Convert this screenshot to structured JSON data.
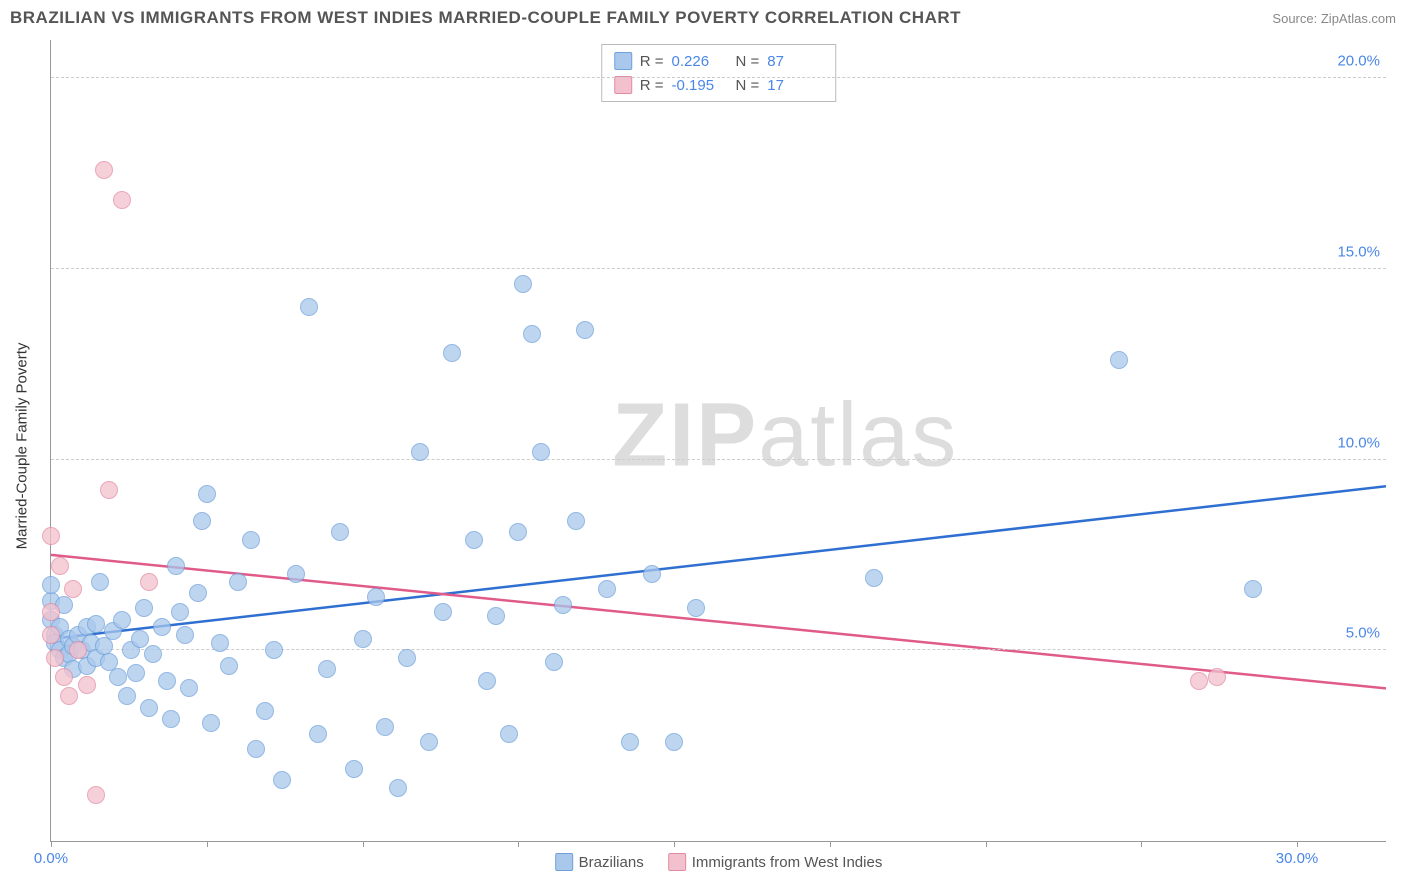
{
  "title": "BRAZILIAN VS IMMIGRANTS FROM WEST INDIES MARRIED-COUPLE FAMILY POVERTY CORRELATION CHART",
  "source_label": "Source:",
  "source_name": "ZipAtlas.com",
  "ylabel": "Married-Couple Family Poverty",
  "watermark": {
    "bold": "ZIP",
    "light": "atlas"
  },
  "chart": {
    "type": "scatter",
    "background_color": "#ffffff",
    "grid_color": "#cccccc",
    "axis_color": "#999999",
    "xlim": [
      0,
      30
    ],
    "ylim": [
      0,
      21
    ],
    "xtick_positions": [
      0,
      3.5,
      7,
      10.5,
      14,
      17.5,
      21,
      24.5,
      28
    ],
    "xtick_labels": {
      "0": "0.0%",
      "28": "30.0%"
    },
    "ytick_positions": [
      5,
      10,
      15,
      20
    ],
    "ytick_labels": {
      "5": "5.0%",
      "10": "10.0%",
      "15": "15.0%",
      "20": "20.0%"
    },
    "tick_label_color": "#4a86e8",
    "tick_label_fontsize": 15,
    "marker_radius": 9,
    "series": [
      {
        "name": "Brazilians",
        "fill": "#a9c8ec",
        "stroke": "#6fa1da",
        "stroke_width": 1.2,
        "opacity": 0.75,
        "R": "0.226",
        "N": "87",
        "trend": {
          "x1": 0,
          "y1": 5.3,
          "x2": 30,
          "y2": 9.3,
          "color": "#2e6fd1",
          "width": 2.5
        },
        "points": [
          [
            0.0,
            5.8
          ],
          [
            0.0,
            6.3
          ],
          [
            0.0,
            6.7
          ],
          [
            0.1,
            5.4
          ],
          [
            0.1,
            5.2
          ],
          [
            0.2,
            5.6
          ],
          [
            0.2,
            5.0
          ],
          [
            0.3,
            4.8
          ],
          [
            0.3,
            6.2
          ],
          [
            0.4,
            5.3
          ],
          [
            0.4,
            4.9
          ],
          [
            0.5,
            5.1
          ],
          [
            0.5,
            4.5
          ],
          [
            0.6,
            5.4
          ],
          [
            0.7,
            5.0
          ],
          [
            0.8,
            5.6
          ],
          [
            0.8,
            4.6
          ],
          [
            0.9,
            5.2
          ],
          [
            1.0,
            4.8
          ],
          [
            1.0,
            5.7
          ],
          [
            1.2,
            5.1
          ],
          [
            1.3,
            4.7
          ],
          [
            1.4,
            5.5
          ],
          [
            1.5,
            4.3
          ],
          [
            1.6,
            5.8
          ],
          [
            1.7,
            3.8
          ],
          [
            1.8,
            5.0
          ],
          [
            1.9,
            4.4
          ],
          [
            2.0,
            5.3
          ],
          [
            2.1,
            6.1
          ],
          [
            2.2,
            3.5
          ],
          [
            2.3,
            4.9
          ],
          [
            2.5,
            5.6
          ],
          [
            2.6,
            4.2
          ],
          [
            2.7,
            3.2
          ],
          [
            2.8,
            7.2
          ],
          [
            3.0,
            5.4
          ],
          [
            3.1,
            4.0
          ],
          [
            3.3,
            6.5
          ],
          [
            3.4,
            8.4
          ],
          [
            3.5,
            9.1
          ],
          [
            3.6,
            3.1
          ],
          [
            3.8,
            5.2
          ],
          [
            4.0,
            4.6
          ],
          [
            4.2,
            6.8
          ],
          [
            4.5,
            7.9
          ],
          [
            4.6,
            2.4
          ],
          [
            4.8,
            3.4
          ],
          [
            5.0,
            5.0
          ],
          [
            5.2,
            1.6
          ],
          [
            5.5,
            7.0
          ],
          [
            5.8,
            14.0
          ],
          [
            6.0,
            2.8
          ],
          [
            6.2,
            4.5
          ],
          [
            6.5,
            8.1
          ],
          [
            6.8,
            1.9
          ],
          [
            7.0,
            5.3
          ],
          [
            7.3,
            6.4
          ],
          [
            7.5,
            3.0
          ],
          [
            7.8,
            1.4
          ],
          [
            8.0,
            4.8
          ],
          [
            8.3,
            10.2
          ],
          [
            8.5,
            2.6
          ],
          [
            8.8,
            6.0
          ],
          [
            9.0,
            12.8
          ],
          [
            9.5,
            7.9
          ],
          [
            9.8,
            4.2
          ],
          [
            10.0,
            5.9
          ],
          [
            10.3,
            2.8
          ],
          [
            10.5,
            8.1
          ],
          [
            10.6,
            14.6
          ],
          [
            10.8,
            13.3
          ],
          [
            11.0,
            10.2
          ],
          [
            11.3,
            4.7
          ],
          [
            11.5,
            6.2
          ],
          [
            11.8,
            8.4
          ],
          [
            12.0,
            13.4
          ],
          [
            12.5,
            6.6
          ],
          [
            13.0,
            2.6
          ],
          [
            13.5,
            7.0
          ],
          [
            14.0,
            2.6
          ],
          [
            14.5,
            6.1
          ],
          [
            18.5,
            6.9
          ],
          [
            24.0,
            12.6
          ],
          [
            27.0,
            6.6
          ],
          [
            1.1,
            6.8
          ],
          [
            2.9,
            6.0
          ]
        ]
      },
      {
        "name": "Immigrants from West Indies",
        "fill": "#f2c1cd",
        "stroke": "#e38aa3",
        "stroke_width": 1.2,
        "opacity": 0.75,
        "R": "-0.195",
        "N": "17",
        "trend": {
          "x1": 0,
          "y1": 7.5,
          "x2": 30,
          "y2": 4.0,
          "color": "#e05a8a",
          "width": 2.5
        },
        "points": [
          [
            0.0,
            6.0
          ],
          [
            0.0,
            5.4
          ],
          [
            0.0,
            8.0
          ],
          [
            0.1,
            4.8
          ],
          [
            0.2,
            7.2
          ],
          [
            0.3,
            4.3
          ],
          [
            0.4,
            3.8
          ],
          [
            0.5,
            6.6
          ],
          [
            0.6,
            5.0
          ],
          [
            0.8,
            4.1
          ],
          [
            1.0,
            1.2
          ],
          [
            1.2,
            17.6
          ],
          [
            1.3,
            9.2
          ],
          [
            1.6,
            16.8
          ],
          [
            2.2,
            6.8
          ],
          [
            25.8,
            4.2
          ],
          [
            26.2,
            4.3
          ]
        ]
      }
    ]
  },
  "legend_top": {
    "R_label": "R  =",
    "N_label": "N  ="
  },
  "legend_bottom": [
    {
      "swatch_fill": "#a9c8ec",
      "swatch_stroke": "#6fa1da",
      "label": "Brazilians"
    },
    {
      "swatch_fill": "#f2c1cd",
      "swatch_stroke": "#e38aa3",
      "label": "Immigrants from West Indies"
    }
  ]
}
